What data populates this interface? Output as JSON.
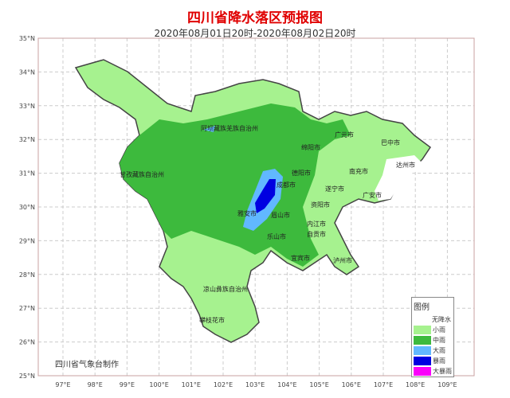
{
  "title": "四川省降水落区预报图",
  "subtitle": "2020年08月01日20时-2020年08月02日20时",
  "credit": "四川省气象台制作",
  "axes": {
    "lat_labels": [
      "35°N",
      "34°N",
      "33°N",
      "32°N",
      "31°N",
      "30°N",
      "29°N",
      "28°N",
      "27°N",
      "26°N",
      "25°N"
    ],
    "lon_labels": [
      "97°E",
      "98°E",
      "99°E",
      "100°E",
      "101°E",
      "102°E",
      "103°E",
      "104°E",
      "105°E",
      "106°E",
      "107°E",
      "108°E",
      "109°E"
    ]
  },
  "cities": [
    "阿坝藏族羌族自治州",
    "甘孜藏族自治州",
    "广元市",
    "巴中市",
    "绵阳市",
    "达州市",
    "南充市",
    "德阳市",
    "成都市",
    "遂宁市",
    "广安市",
    "资阳市",
    "雅安市",
    "眉山市",
    "内江市",
    "乐山市",
    "自贡市",
    "宜宾市",
    "泸州市",
    "凉山彝族自治州",
    "攀枝花市"
  ],
  "legend": {
    "title": "图例",
    "items": [
      {
        "label": "无降水",
        "color": "#ffffff"
      },
      {
        "label": "小雨",
        "color": "#a6f28f"
      },
      {
        "label": "中雨",
        "color": "#3dba3d"
      },
      {
        "label": "大雨",
        "color": "#61b8ff"
      },
      {
        "label": "暴雨",
        "color": "#0000e1"
      },
      {
        "label": "大暴雨",
        "color": "#fa00fa"
      }
    ]
  }
}
